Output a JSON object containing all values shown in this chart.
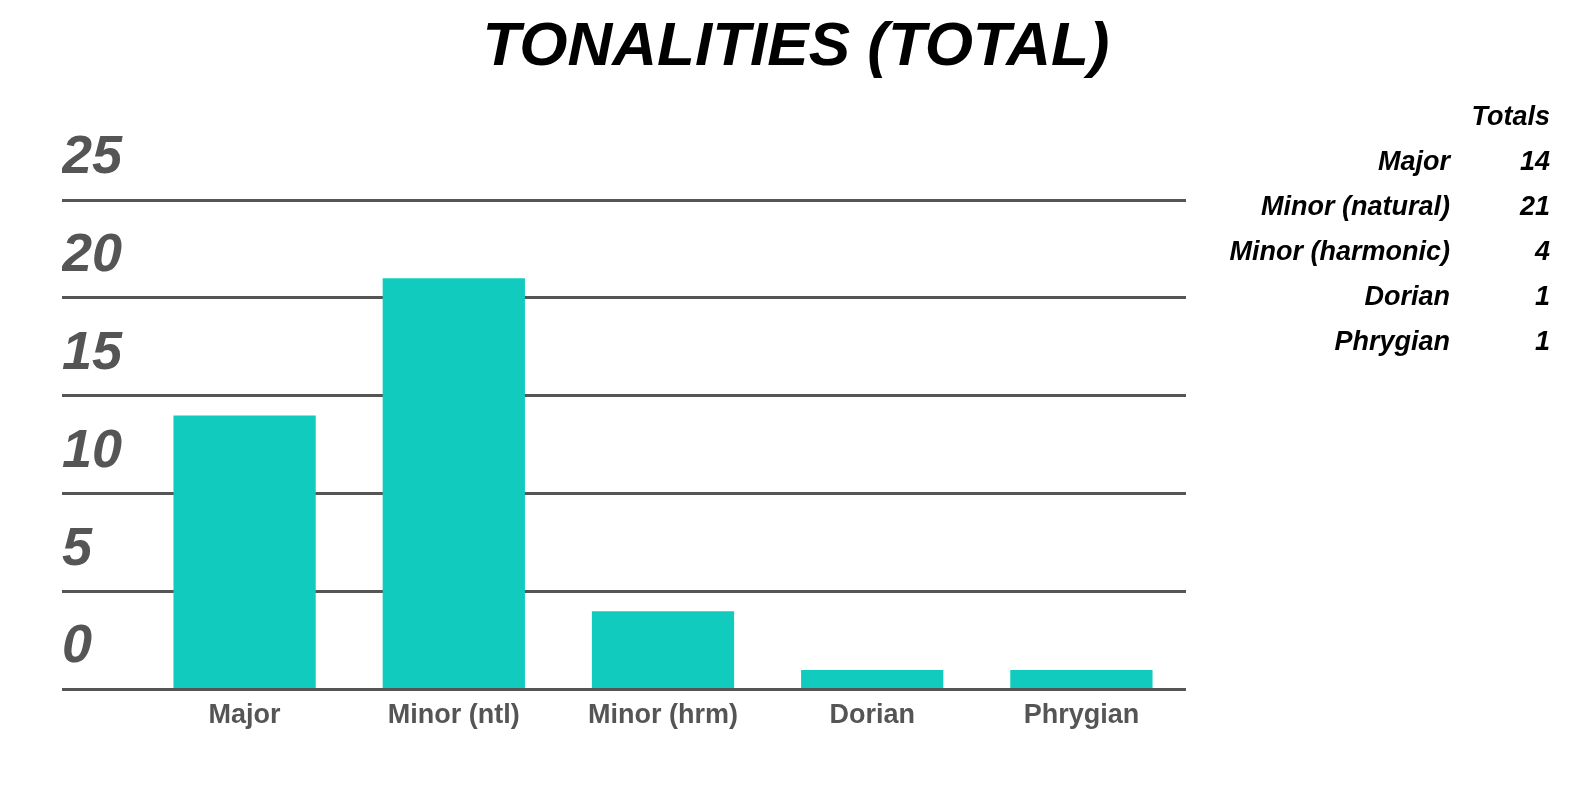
{
  "chart_data": {
    "type": "bar",
    "title": "TONALITIES (TOTAL)",
    "categories": [
      "Major",
      "Minor (ntl)",
      "Minor (hrm)",
      "Dorian",
      "Phrygian"
    ],
    "values": [
      14,
      21,
      4,
      1,
      1
    ],
    "color": "#11ccbe",
    "ylim": [
      0,
      25
    ],
    "yticks": [
      0,
      5,
      10,
      15,
      20,
      25
    ],
    "grid": "y",
    "annotations": [
      "Totals",
      "Major",
      "14",
      "Minor (natural)",
      "21",
      "Minor (harmonic)",
      "4",
      "Dorian",
      "1",
      "Phrygian",
      "1"
    ]
  }
}
